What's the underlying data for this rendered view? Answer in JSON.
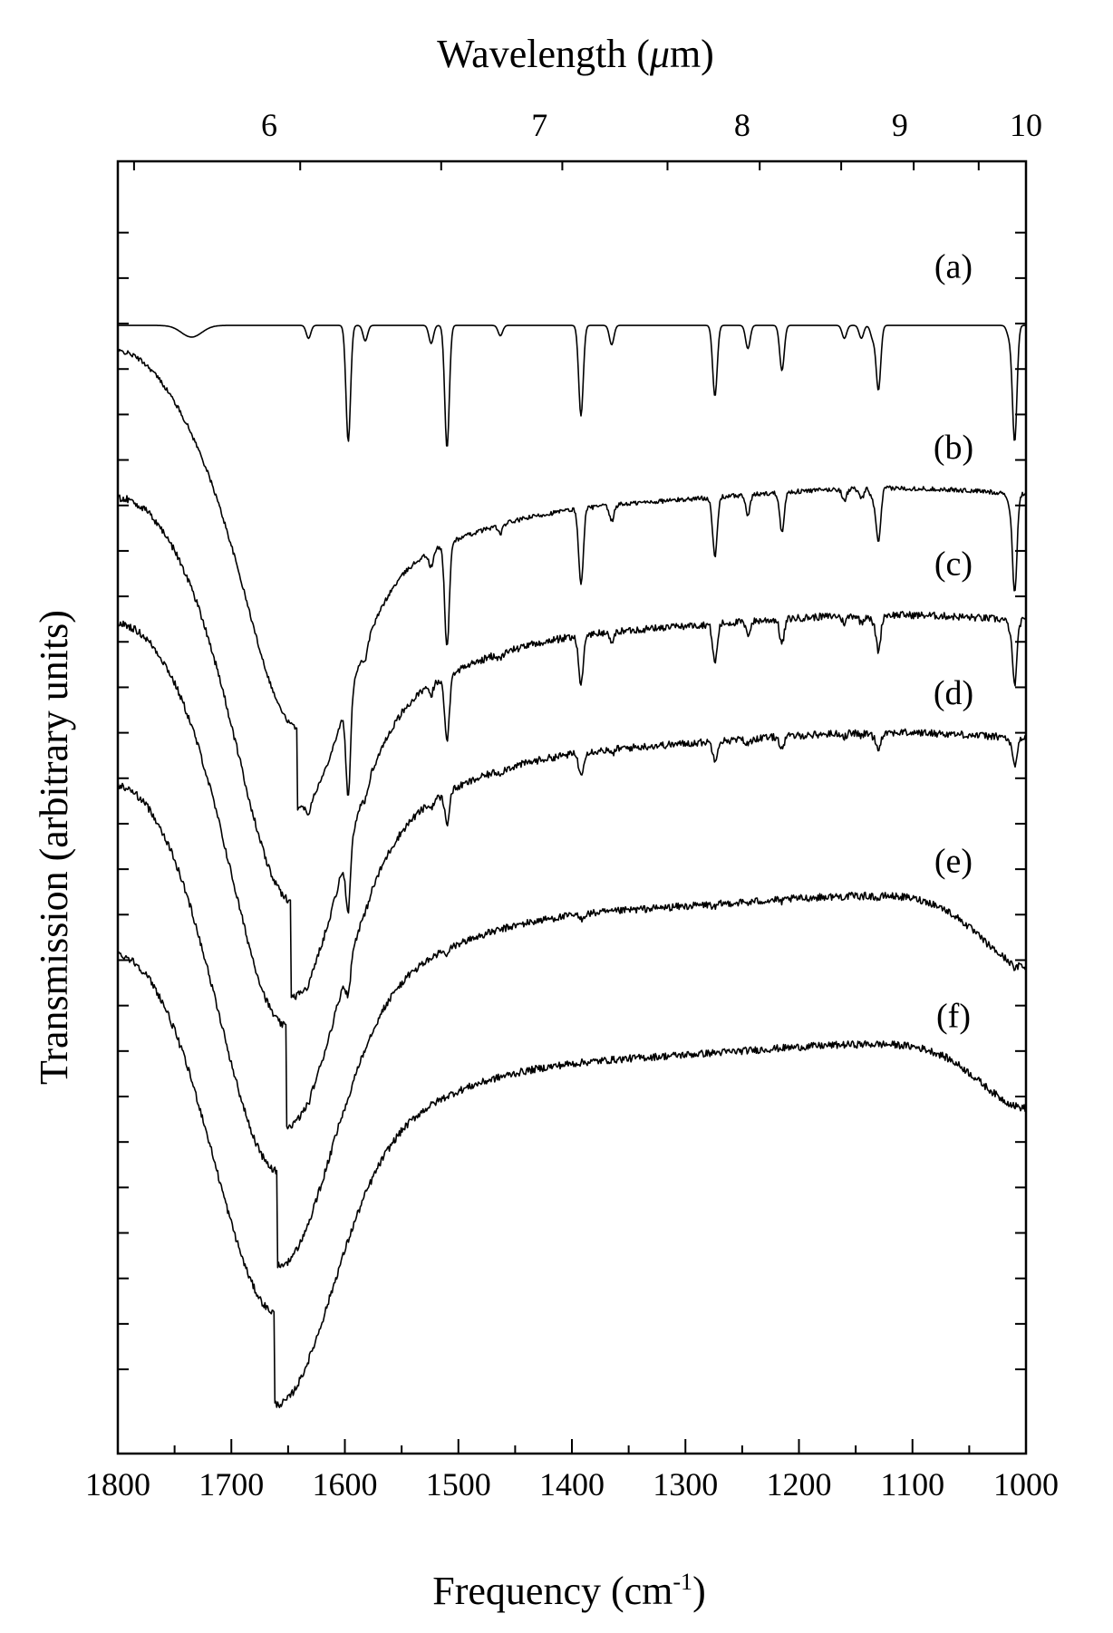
{
  "chart_data": {
    "type": "line",
    "xlabel": "Frequency (cm",
    "xlabel_sup": "-1",
    "xlabel_end": ")",
    "x2label": "Wavelength (",
    "x2label_mu": "μ",
    "x2label_end": "m)",
    "ylabel": "Transmission (arbitrary units)",
    "xlim": [
      1800,
      1000
    ],
    "x_reversed": true,
    "x_ticks": [
      "1800",
      "1700",
      "1600",
      "1500",
      "1400",
      "1300",
      "1200",
      "1100",
      "1000"
    ],
    "x2_ticks": [
      "6",
      "7",
      "8",
      "9",
      "10"
    ],
    "y_ticks_labeled": false,
    "series": [
      {
        "name": "(a)",
        "baseline": 0.873,
        "profile": "sharp",
        "points": [
          [
            1800,
            0.873
          ],
          [
            1760,
            0.873
          ],
          [
            1745,
            0.87
          ],
          [
            1735,
            0.864
          ],
          [
            1725,
            0.87
          ],
          [
            1700,
            0.873
          ],
          [
            1600,
            0.873
          ],
          [
            1550,
            0.873
          ],
          [
            1500,
            0.873
          ],
          [
            1400,
            0.873
          ],
          [
            1300,
            0.873
          ],
          [
            1200,
            0.873
          ],
          [
            1100,
            0.873
          ],
          [
            1020,
            0.873
          ],
          [
            1000,
            0.873
          ]
        ]
      },
      {
        "name": "(b)",
        "baseline": 0.735,
        "dip_x": 1642,
        "dip_y": 0.558,
        "start_y": 0.853,
        "end_y": 0.735
      },
      {
        "name": "(c)",
        "baseline": 0.637,
        "dip_x": 1648,
        "dip_y": 0.424,
        "start_y": 0.74,
        "end_y": 0.637
      },
      {
        "name": "(d)",
        "baseline": 0.546,
        "dip_x": 1652,
        "dip_y": 0.326,
        "start_y": 0.643,
        "end_y": 0.546
      },
      {
        "name": "(e)",
        "baseline": 0.42,
        "dip_x": 1660,
        "dip_y": 0.212,
        "start_y": 0.519,
        "end_y": 0.37
      },
      {
        "name": "(f)",
        "baseline": 0.305,
        "dip_x": 1662,
        "dip_y": 0.103,
        "start_y": 0.39,
        "end_y": 0.26
      }
    ],
    "sharp_lines_cm": [
      1632,
      1597,
      1582,
      1524,
      1510,
      1463,
      1392,
      1365,
      1274,
      1245,
      1215,
      1160,
      1145,
      1135,
      1130,
      1015,
      1010
    ],
    "grid": false,
    "legend": "inline-labels"
  }
}
